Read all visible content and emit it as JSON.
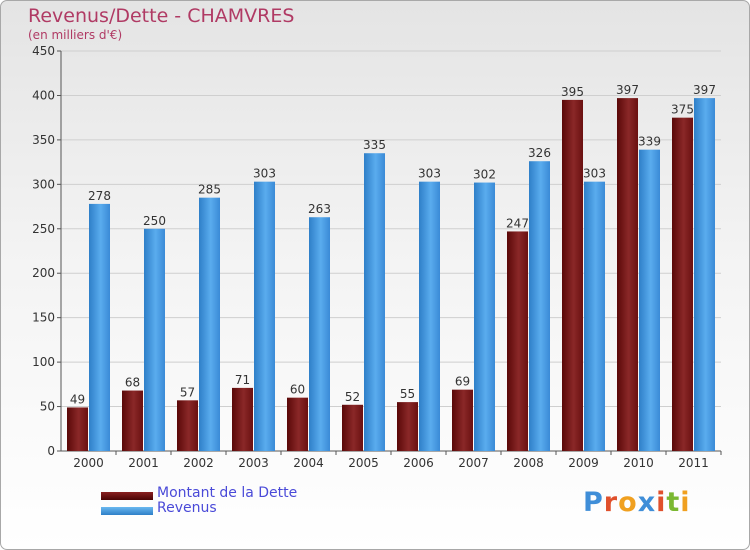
{
  "title": "Revenus/Dette - CHAMVRES",
  "subtitle": "(en milliers d'€)",
  "logo": {
    "text": "Proxiti",
    "letters": [
      {
        "ch": "P",
        "color": "#3f8ed8"
      },
      {
        "ch": "r",
        "color": "#e0502c"
      },
      {
        "ch": "o",
        "color": "#f0a020"
      },
      {
        "ch": "x",
        "color": "#3f8ed8"
      },
      {
        "ch": "i",
        "color": "#e0502c"
      },
      {
        "ch": "t",
        "color": "#7bb832"
      },
      {
        "ch": "i",
        "color": "#f0a020"
      }
    ]
  },
  "chart_data": {
    "type": "bar",
    "title": "Revenus/Dette - CHAMVRES",
    "subtitle": "(en milliers d'€)",
    "categories": [
      "2000",
      "2001",
      "2002",
      "2003",
      "2004",
      "2005",
      "2006",
      "2007",
      "2008",
      "2009",
      "2010",
      "2011"
    ],
    "series": [
      {
        "name": "Montant de la Dette",
        "color": "#7a1414",
        "values": [
          49,
          68,
          57,
          71,
          60,
          52,
          55,
          69,
          247,
          395,
          397,
          375
        ]
      },
      {
        "name": "Revenus",
        "color": "#3f94dc",
        "values": [
          278,
          250,
          285,
          303,
          263,
          335,
          303,
          302,
          326,
          303,
          339,
          397
        ]
      }
    ],
    "ylim": [
      0,
      450
    ],
    "yticks": [
      0,
      50,
      100,
      150,
      200,
      250,
      300,
      350,
      400,
      450
    ],
    "grid": true,
    "legend": "bottom-left"
  }
}
